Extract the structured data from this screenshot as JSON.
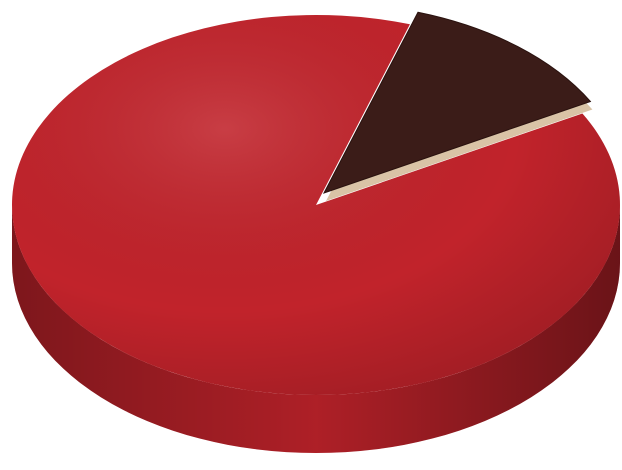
{
  "chart_data": {
    "type": "pie",
    "values": [
      12,
      88
    ],
    "colors": [
      "#3b1c18",
      "#c1232b"
    ],
    "start_angle": -72
  }
}
